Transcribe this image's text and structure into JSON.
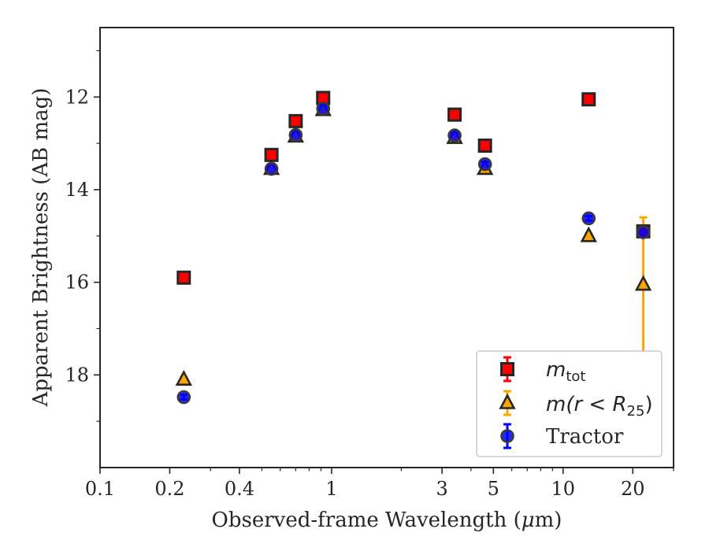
{
  "chart_data": {
    "type": "scatter",
    "xlabel_pre": "Observed-frame Wavelength (",
    "xlabel_mu": "μ",
    "xlabel_post": "m)",
    "ylabel": "Apparent Brightness (AB mag)",
    "x_scale": "log",
    "xlim": [
      0.1,
      30
    ],
    "ylim": [
      20,
      10.5
    ],
    "y_inverted": true,
    "x_ticks": [
      0.1,
      0.2,
      0.4,
      1,
      3,
      5,
      10,
      20
    ],
    "x_tick_labels": [
      "0.1",
      "0.2",
      "0.4",
      "1",
      "3",
      "5",
      "10",
      "20"
    ],
    "y_ticks": [
      12,
      14,
      16,
      18
    ],
    "y_tick_labels": [
      "12",
      "14",
      "16",
      "18"
    ],
    "grid": false,
    "legend_position": "lower-right",
    "series": [
      {
        "name": "m_tot",
        "legend_main": "m",
        "legend_sub": "tot",
        "marker": "square",
        "fill": "#ff0000",
        "errcolor": "#ff0000",
        "points": [
          {
            "x": 0.23,
            "y": 15.9,
            "err": 0.05
          },
          {
            "x": 0.55,
            "y": 13.25,
            "err": 0.05
          },
          {
            "x": 0.7,
            "y": 12.52,
            "err": 0.05
          },
          {
            "x": 0.92,
            "y": 12.02,
            "err": 0.05
          },
          {
            "x": 3.4,
            "y": 12.38,
            "err": 0.05
          },
          {
            "x": 4.6,
            "y": 13.05,
            "err": 0.05
          },
          {
            "x": 12.9,
            "y": 12.05,
            "err": 0.05
          },
          {
            "x": 22.2,
            "y": 14.9,
            "err": 0.05
          }
        ]
      },
      {
        "name": "m(r<R_25)",
        "legend_main": "m(r < R",
        "legend_sub": "25",
        "legend_tail": ")",
        "marker": "triangle",
        "fill": "#ffa500",
        "errcolor": "#ffa500",
        "points": [
          {
            "x": 0.23,
            "y": 18.1,
            "err": 0.05
          },
          {
            "x": 0.55,
            "y": 13.55,
            "err": 0.05
          },
          {
            "x": 0.7,
            "y": 12.85,
            "err": 0.05
          },
          {
            "x": 0.92,
            "y": 12.28,
            "err": 0.05
          },
          {
            "x": 3.4,
            "y": 12.88,
            "err": 0.05
          },
          {
            "x": 4.6,
            "y": 13.55,
            "err": 0.05
          },
          {
            "x": 12.9,
            "y": 15.0,
            "err": 0.05
          },
          {
            "x": 22.2,
            "y": 16.05,
            "err": 1.45
          }
        ]
      },
      {
        "name": "Tractor",
        "legend_label": "Tractor",
        "marker": "circle",
        "fill": "#0000ff",
        "errcolor": "#0000ff",
        "points": [
          {
            "x": 0.23,
            "y": 18.48,
            "err": 0.05
          },
          {
            "x": 0.55,
            "y": 13.55,
            "err": 0.05
          },
          {
            "x": 0.7,
            "y": 12.82,
            "err": 0.05
          },
          {
            "x": 0.92,
            "y": 12.25,
            "err": 0.05
          },
          {
            "x": 3.4,
            "y": 12.83,
            "err": 0.05
          },
          {
            "x": 4.6,
            "y": 13.45,
            "err": 0.05
          },
          {
            "x": 12.9,
            "y": 14.62,
            "err": 0.05
          },
          {
            "x": 22.2,
            "y": 14.92,
            "err": 0.05
          }
        ]
      }
    ]
  }
}
